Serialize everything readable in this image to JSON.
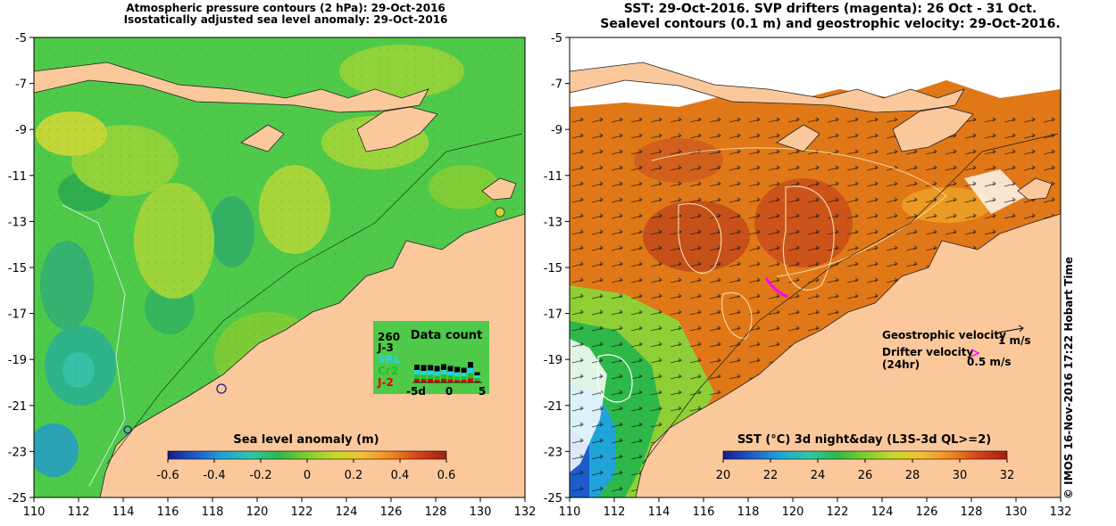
{
  "left_panel": {
    "title_line1": "Atmospheric pressure contours (2 hPa): 29-Oct-2016",
    "title_line2": "Isostatically adjusted sea level anomaly: 29-Oct-2016",
    "x_ticks": [
      "110",
      "112",
      "114",
      "116",
      "118",
      "120",
      "122",
      "124",
      "126",
      "128",
      "130",
      "132"
    ],
    "y_ticks": [
      "-5",
      "-7",
      "-9",
      "-11",
      "-13",
      "-15",
      "-17",
      "-19",
      "-21",
      "-23",
      "-25"
    ],
    "colorbar": {
      "label": "Sea level anomaly (m)",
      "ticks": [
        "-0.6",
        "-0.4",
        "-0.2",
        "0",
        "0.2",
        "0.4",
        "0.6"
      ],
      "colors": [
        "#1a1a8c",
        "#1d5ccc",
        "#1fa3d9",
        "#2ec8a8",
        "#2fb84a",
        "#7fcf2a",
        "#c9d82a",
        "#f0c030",
        "#f08a20",
        "#d8421a",
        "#a0200e"
      ]
    },
    "data_count": {
      "title": "Data count",
      "max_label": "260",
      "missions": [
        {
          "label": "J-3",
          "color": "#000000"
        },
        {
          "label": "SRL",
          "color": "#22d3f0"
        },
        {
          "label": "Cr2",
          "color": "#22c022"
        },
        {
          "label": "J-2",
          "color": "#e00000"
        }
      ],
      "axis_labels": [
        "-5d",
        "0",
        "5"
      ]
    }
  },
  "right_panel": {
    "title_line1": "SST: 29-Oct-2016. SVP drifters (magenta): 26 Oct - 31 Oct.",
    "title_line2": "Sealevel contours (0.1 m) and geostrophic velocity: 29-Oct-2016.",
    "x_ticks": [
      "110",
      "112",
      "114",
      "116",
      "118",
      "120",
      "122",
      "124",
      "126",
      "128",
      "130",
      "132"
    ],
    "y_ticks": [
      "-5",
      "-7",
      "-9",
      "-11",
      "-13",
      "-15",
      "-17",
      "-19",
      "-21",
      "-23",
      "-25"
    ],
    "colorbar": {
      "label": "SST (°C) 3d night&day (L3S-3d QL>=2)",
      "ticks": [
        "20",
        "22",
        "24",
        "26",
        "28",
        "30",
        "32"
      ],
      "colors": [
        "#1a1a8c",
        "#1d5ccc",
        "#1fa3d9",
        "#2ec8a8",
        "#2fb84a",
        "#7fcf2a",
        "#c9d82a",
        "#f0c030",
        "#f08a20",
        "#d8421a",
        "#a0200e"
      ]
    },
    "legend": {
      "geo_label": "Geostrophic velocity",
      "geo_scale": "1 m/s",
      "drifter_label_line1": "Drifter velocity",
      "drifter_label_line2": "(24hr)",
      "drifter_scale": "0.5 m/s"
    }
  },
  "credit": "© IMOS 16-Nov-2016 17:22 Hobart Time",
  "colors": {
    "land": "#fbc89c",
    "sla_ocean": "#4fc94a",
    "sst_ocean": "#e07818",
    "drifter": "#ff00ff"
  }
}
